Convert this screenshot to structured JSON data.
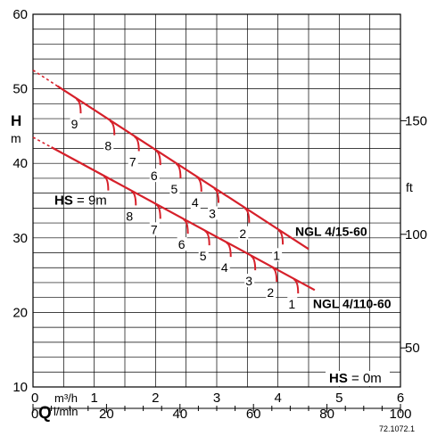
{
  "chart_data": {
    "type": "line",
    "title": "",
    "x_axis": {
      "primary": {
        "unit": "m³/h",
        "range": [
          0,
          6
        ],
        "ticks": [
          "0",
          "1",
          "2",
          "3",
          "4",
          "5",
          "6"
        ]
      },
      "secondary": {
        "symbol": "Q",
        "unit": "l/min",
        "range": [
          0,
          100
        ],
        "ticks": [
          "0",
          "20",
          "40",
          "60",
          "80",
          "100"
        ]
      }
    },
    "y_axis": {
      "left": {
        "symbol": "H",
        "unit": "m",
        "range": [
          10,
          60
        ],
        "ticks": [
          "10",
          "20",
          "30",
          "40",
          "50",
          "60"
        ]
      },
      "right": {
        "unit": "ft",
        "ticks": [
          "50",
          "100",
          "150"
        ],
        "tick_values_ft": [
          50,
          100,
          150
        ]
      }
    },
    "grid": true,
    "series": [
      {
        "name": "NGL 4/15-60",
        "x": [
          0.0,
          4.5
        ],
        "y": [
          52.5,
          28.5
        ],
        "dashed_until_x": 0.4,
        "hs_marks": [
          {
            "label": "9",
            "x": 0.75
          },
          {
            "label": "8",
            "x": 1.3
          },
          {
            "label": "7",
            "x": 1.7
          },
          {
            "label": "6",
            "x": 2.05
          },
          {
            "label": "5",
            "x": 2.38
          },
          {
            "label": "4",
            "x": 2.72
          },
          {
            "label": "3",
            "x": 3.0
          },
          {
            "label": "2",
            "x": 3.5
          },
          {
            "label": "1",
            "x": 4.05
          }
        ]
      },
      {
        "name": "NGL 4/110-60",
        "x": [
          0.0,
          4.6
        ],
        "y": [
          43.5,
          23.0
        ],
        "dashed_until_x": 0.3,
        "hs_marks": [
          {
            "label": "9",
            "x": 1.2,
            "prefix": "HS = ",
            "suffix": "m"
          },
          {
            "label": "8",
            "x": 1.65
          },
          {
            "label": "7",
            "x": 2.05
          },
          {
            "label": "6",
            "x": 2.5
          },
          {
            "label": "5",
            "x": 2.85
          },
          {
            "label": "4",
            "x": 3.2
          },
          {
            "label": "3",
            "x": 3.6
          },
          {
            "label": "2",
            "x": 3.95
          },
          {
            "label": "1",
            "x": 4.3
          }
        ]
      }
    ],
    "annotations": [
      {
        "prefix": "HS",
        "text": " = 0m"
      }
    ],
    "figure_code": "72.1072.1"
  }
}
